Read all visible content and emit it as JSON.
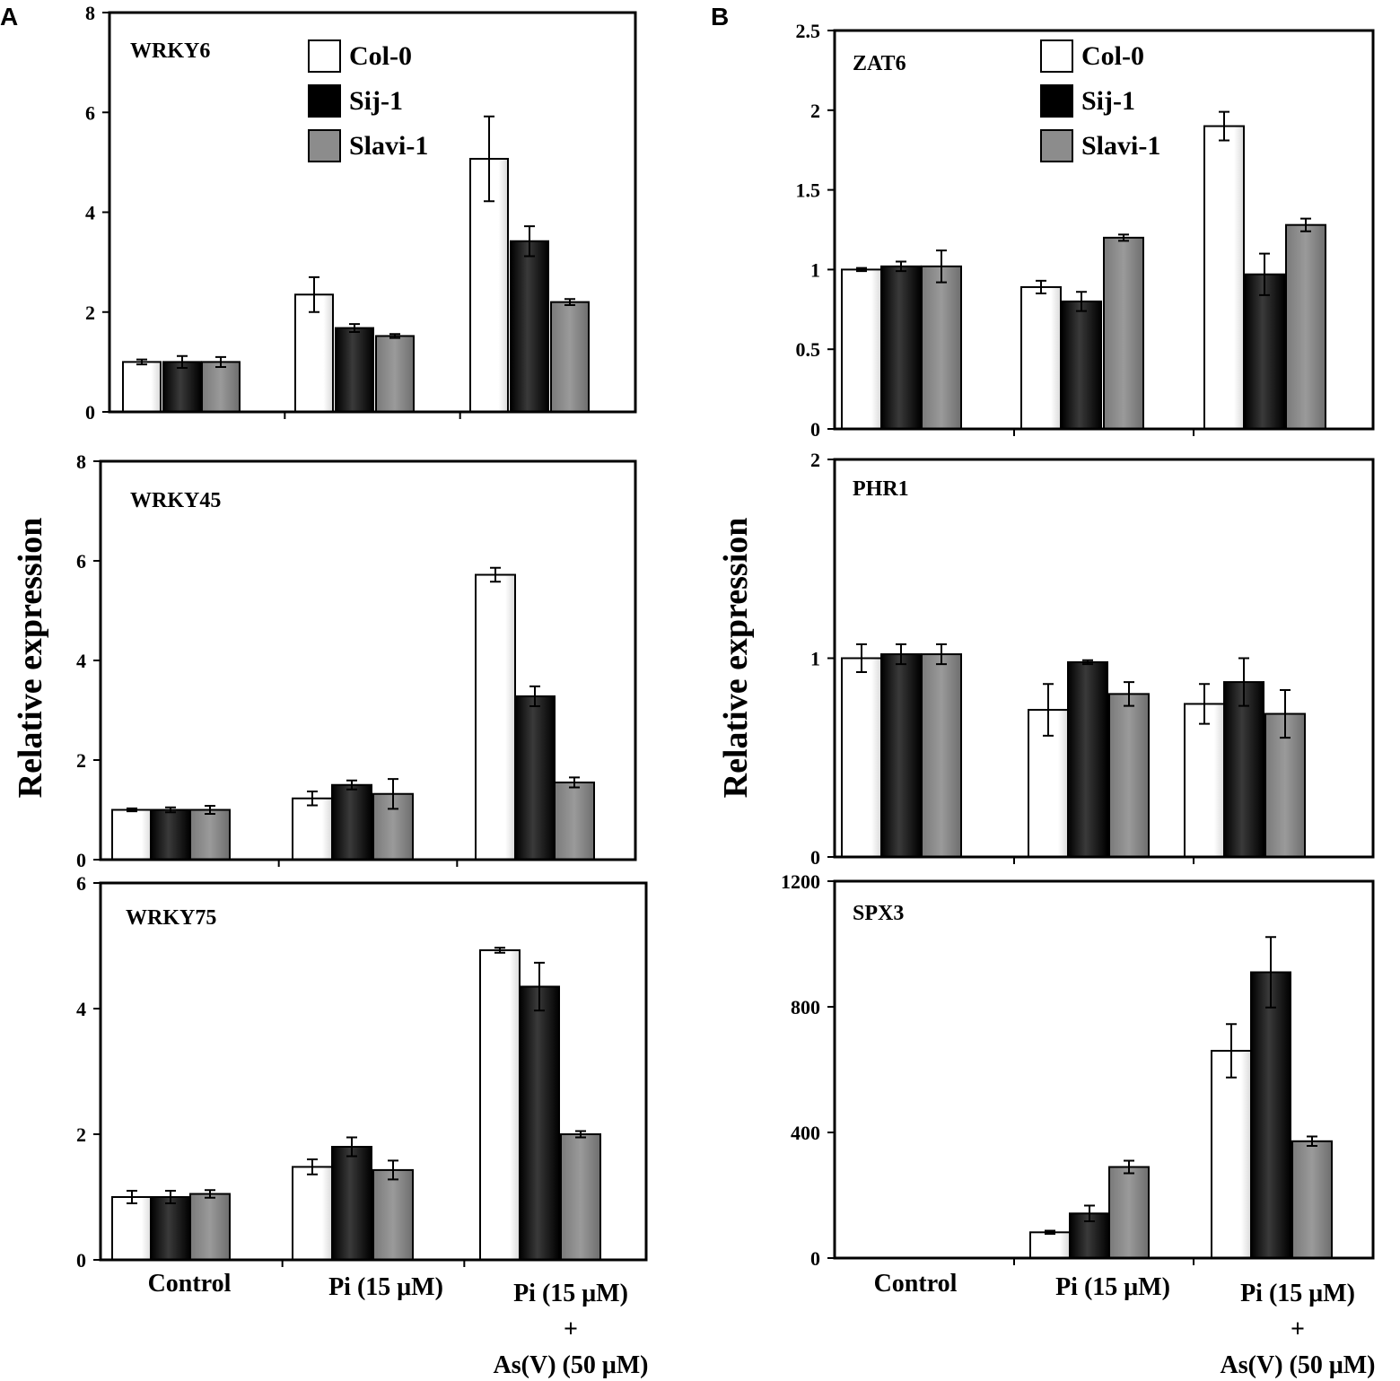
{
  "panel_labels": [
    "A",
    "B"
  ],
  "y_axis_title": "Relative expression",
  "x_categories": [
    "Control",
    "Pi (15 μM)",
    "Pi (15 μM)"
  ],
  "x_category_extra": [
    "+",
    "As(V) (50 μM)"
  ],
  "legend": [
    {
      "name": "Col-0",
      "color": "#ffffff"
    },
    {
      "name": "Sij-1",
      "color": "#000000"
    },
    {
      "name": "Slavi-1",
      "color": "#8c8c8c"
    }
  ],
  "chart_data": [
    {
      "type": "bar",
      "panel": "A",
      "title": "WRKY6",
      "categories": [
        "Control",
        "Pi (15 μM)",
        "Pi (15 μM) + As(V) (50 μM)"
      ],
      "ylim": [
        0,
        8
      ],
      "yticks": [
        "0",
        "2",
        "4",
        "6",
        "8"
      ],
      "ytick_values": [
        0,
        2,
        4,
        6,
        8
      ],
      "ylabel": "Relative expression",
      "series": [
        {
          "name": "Col-0",
          "values": [
            1.0,
            2.35,
            5.07
          ],
          "errors": [
            0.05,
            0.35,
            0.85
          ]
        },
        {
          "name": "Sij-1",
          "values": [
            1.0,
            1.68,
            3.42
          ],
          "errors": [
            0.12,
            0.08,
            0.3
          ]
        },
        {
          "name": "Slavi-1",
          "values": [
            1.0,
            1.52,
            2.2
          ],
          "errors": [
            0.1,
            0.04,
            0.06
          ]
        }
      ]
    },
    {
      "type": "bar",
      "panel": "A",
      "title": "WRKY45",
      "categories": [
        "Control",
        "Pi (15 μM)",
        "Pi (15 μM) + As(V) (50 μM)"
      ],
      "ylim": [
        0,
        8
      ],
      "yticks": [
        "0",
        "2",
        "4",
        "6",
        "8"
      ],
      "ytick_values": [
        0,
        2,
        4,
        6,
        8
      ],
      "ylabel": "Relative expression",
      "series": [
        {
          "name": "Col-0",
          "values": [
            1.0,
            1.23,
            5.72
          ],
          "errors": [
            0.03,
            0.14,
            0.14
          ]
        },
        {
          "name": "Sij-1",
          "values": [
            1.0,
            1.5,
            3.28
          ],
          "errors": [
            0.05,
            0.09,
            0.2
          ]
        },
        {
          "name": "Slavi-1",
          "values": [
            1.0,
            1.32,
            1.55
          ],
          "errors": [
            0.08,
            0.3,
            0.1
          ]
        }
      ]
    },
    {
      "type": "bar",
      "panel": "A",
      "title": "WRKY75",
      "categories": [
        "Control",
        "Pi (15 μM)",
        "Pi (15 μM) + As(V) (50 μM)"
      ],
      "ylim": [
        0,
        6
      ],
      "yticks": [
        "0",
        "2",
        "4",
        "6"
      ],
      "ytick_values": [
        0,
        2,
        4,
        6
      ],
      "ylabel": "Relative expression",
      "series": [
        {
          "name": "Col-0",
          "values": [
            1.0,
            1.48,
            4.93
          ],
          "errors": [
            0.1,
            0.12,
            0.04
          ]
        },
        {
          "name": "Sij-1",
          "values": [
            1.0,
            1.8,
            4.35
          ],
          "errors": [
            0.1,
            0.15,
            0.38
          ]
        },
        {
          "name": "Slavi-1",
          "values": [
            1.05,
            1.43,
            2.0
          ],
          "errors": [
            0.06,
            0.15,
            0.05
          ]
        }
      ]
    },
    {
      "type": "bar",
      "panel": "B",
      "title": "ZAT6",
      "categories": [
        "Control",
        "Pi (15 μM)",
        "Pi (15 μM) + As(V) (50 μM)"
      ],
      "ylim": [
        0,
        2.5
      ],
      "yticks": [
        "0",
        "0.5",
        "1",
        "1.5",
        "2",
        "2.5"
      ],
      "ytick_values": [
        0,
        0.5,
        1,
        1.5,
        2,
        2.5
      ],
      "ylabel": "Relative expression",
      "series": [
        {
          "name": "Col-0",
          "values": [
            1.0,
            0.89,
            1.9
          ],
          "errors": [
            0.01,
            0.04,
            0.09
          ]
        },
        {
          "name": "Sij-1",
          "values": [
            1.02,
            0.8,
            0.97
          ],
          "errors": [
            0.03,
            0.06,
            0.13
          ]
        },
        {
          "name": "Slavi-1",
          "values": [
            1.02,
            1.2,
            1.28
          ],
          "errors": [
            0.1,
            0.02,
            0.04
          ]
        }
      ]
    },
    {
      "type": "bar",
      "panel": "B",
      "title": "PHR1",
      "categories": [
        "Control",
        "Pi (15 μM)",
        "Pi (15 μM) + As(V) (50 μM)"
      ],
      "ylim": [
        0,
        2
      ],
      "yticks": [
        "0",
        "1",
        "2"
      ],
      "ytick_values": [
        0,
        1,
        2
      ],
      "ylabel": "Relative expression",
      "series": [
        {
          "name": "Col-0",
          "values": [
            1.0,
            0.74,
            0.77
          ],
          "errors": [
            0.07,
            0.13,
            0.1
          ]
        },
        {
          "name": "Sij-1",
          "values": [
            1.02,
            0.98,
            0.88
          ],
          "errors": [
            0.05,
            0.01,
            0.12
          ]
        },
        {
          "name": "Slavi-1",
          "values": [
            1.02,
            0.82,
            0.72
          ],
          "errors": [
            0.05,
            0.06,
            0.12
          ]
        }
      ]
    },
    {
      "type": "bar",
      "panel": "B",
      "title": "SPX3",
      "categories": [
        "Control",
        "Pi (15 μM)",
        "Pi (15 μM) + As(V) (50 μM)"
      ],
      "ylim": [
        0,
        1200
      ],
      "yticks": [
        "0",
        "400",
        "800",
        "1200"
      ],
      "ytick_values": [
        0,
        400,
        800,
        1200
      ],
      "ylabel": "Relative expression",
      "series": [
        {
          "name": "Col-0",
          "values": [
            1,
            82,
            660
          ],
          "errors": [
            0,
            5,
            85
          ]
        },
        {
          "name": "Sij-1",
          "values": [
            1,
            142,
            910
          ],
          "errors": [
            0,
            25,
            112
          ]
        },
        {
          "name": "Slavi-1",
          "values": [
            1,
            290,
            372
          ],
          "errors": [
            0,
            20,
            15
          ]
        }
      ]
    }
  ]
}
